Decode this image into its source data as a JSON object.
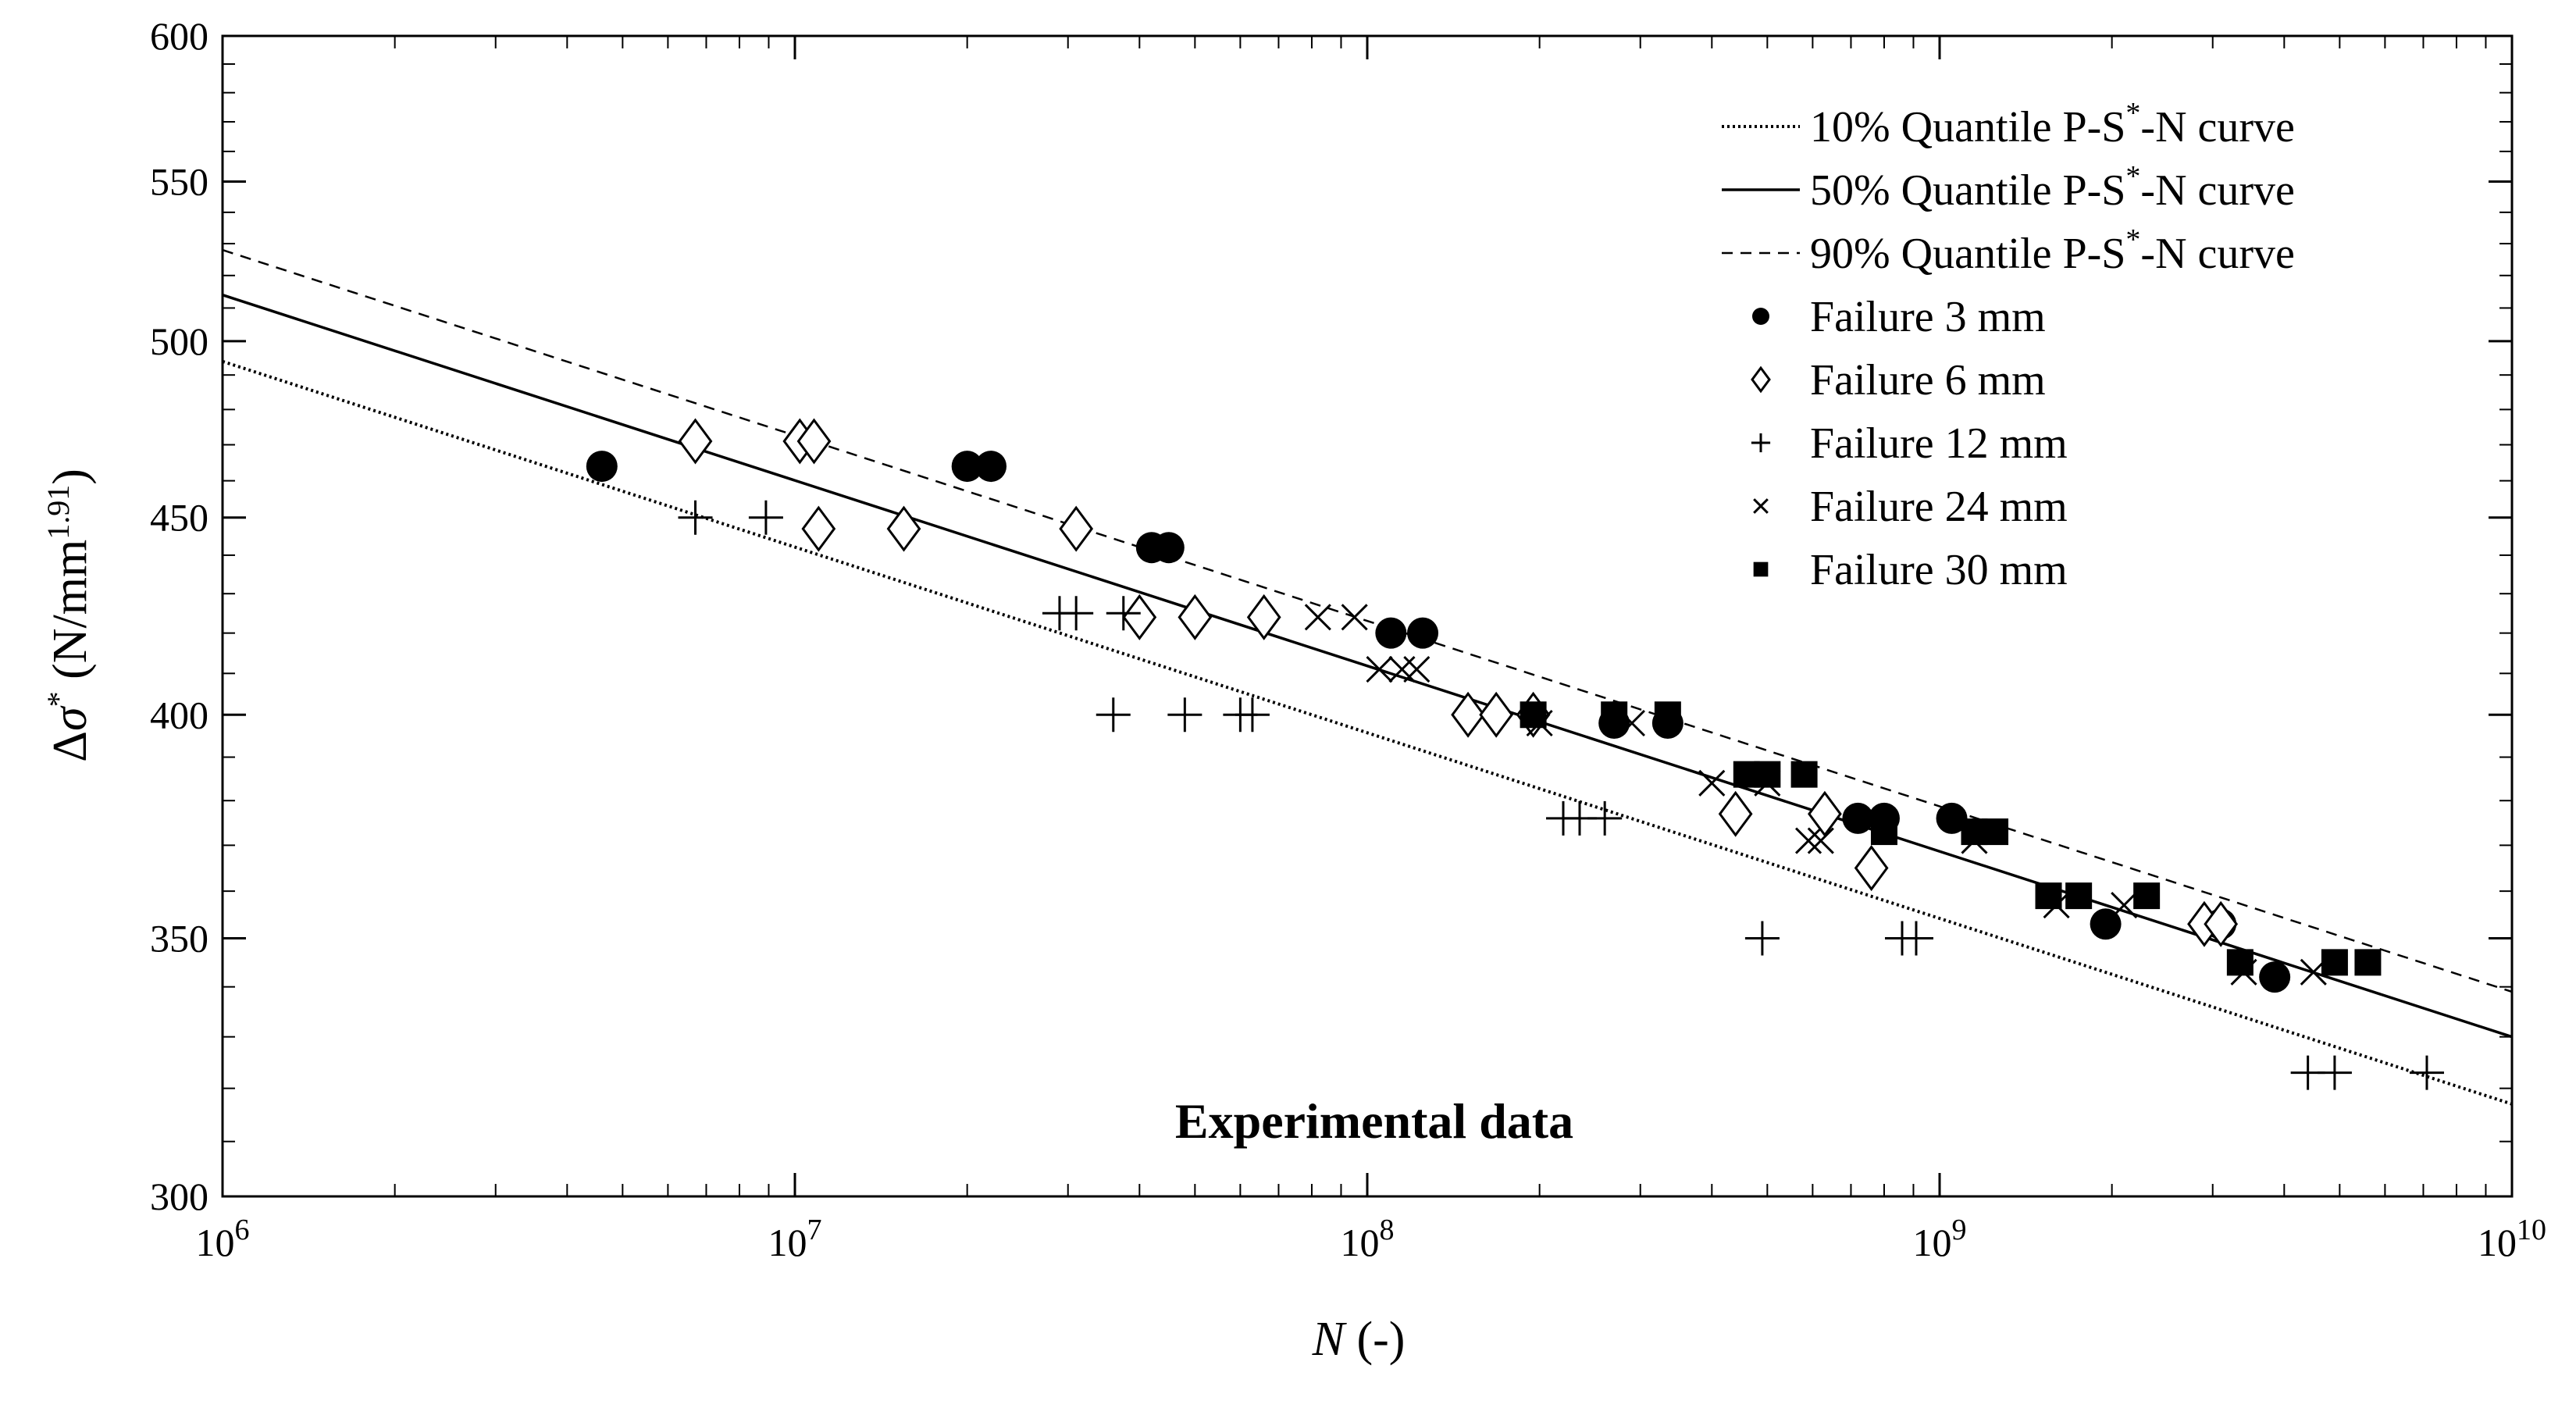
{
  "chart_data": {
    "type": "scatter",
    "x_scale": "log",
    "y_scale": "log",
    "xlim": [
      1000000,
      10000000000
    ],
    "ylim": [
      300,
      600
    ],
    "x_ticks": [
      {
        "value": 1000000,
        "base": "10",
        "exp": "6"
      },
      {
        "value": 10000000,
        "base": "10",
        "exp": "7"
      },
      {
        "value": 100000000,
        "base": "10",
        "exp": "8"
      },
      {
        "value": 1000000000,
        "base": "10",
        "exp": "9"
      },
      {
        "value": 10000000000,
        "base": "10",
        "exp": "10"
      }
    ],
    "y_ticks": [
      {
        "value": 300,
        "label": "300"
      },
      {
        "value": 350,
        "label": "350"
      },
      {
        "value": 400,
        "label": "400"
      },
      {
        "value": 450,
        "label": "450"
      },
      {
        "value": 500,
        "label": "500"
      },
      {
        "value": 550,
        "label": "550"
      },
      {
        "value": 600,
        "label": "600"
      }
    ],
    "xlabel": {
      "symbol": "N",
      "unit": " (-)"
    },
    "ylabel": {
      "delta": "Δ",
      "sigma": "σ",
      "star": "*",
      "unit_open": " (N/mm",
      "exponent": "1.91",
      "unit_close": ")"
    },
    "annotation": "Experimental data",
    "legend_position": "top-right",
    "curves": [
      {
        "name": "10% Quantile P-S*-N curve",
        "style": "dotted",
        "points": [
          [
            1000000,
            494
          ],
          [
            10000000000,
            317
          ]
        ]
      },
      {
        "name": "50% Quantile P-S*-N curve",
        "style": "solid",
        "points": [
          [
            1000000,
            514
          ],
          [
            10000000000,
            330
          ]
        ]
      },
      {
        "name": "90% Quantile P-S*-N curve",
        "style": "dashed",
        "points": [
          [
            1000000,
            528
          ],
          [
            10000000000,
            339
          ]
        ]
      }
    ],
    "series": [
      {
        "name": "Failure 3 mm",
        "marker": "circle",
        "points": [
          [
            4600000,
            464
          ],
          [
            20000000,
            464
          ],
          [
            22000000,
            464
          ],
          [
            42000000,
            442
          ],
          [
            45000000,
            442
          ],
          [
            110000000,
            420
          ],
          [
            125000000,
            420
          ],
          [
            270000000,
            398
          ],
          [
            335000000,
            398
          ],
          [
            720000000,
            376
          ],
          [
            800000000,
            376
          ],
          [
            1050000000,
            376
          ],
          [
            1950000000,
            353
          ],
          [
            3100000000,
            353
          ],
          [
            3850000000,
            342
          ]
        ]
      },
      {
        "name": "Failure 6 mm",
        "marker": "diamond",
        "points": [
          [
            6700000,
            471
          ],
          [
            10200000,
            471
          ],
          [
            10800000,
            471
          ],
          [
            11000000,
            447
          ],
          [
            15500000,
            447
          ],
          [
            31000000,
            447
          ],
          [
            40000000,
            424
          ],
          [
            50000000,
            424
          ],
          [
            66000000,
            424
          ],
          [
            150000000,
            400
          ],
          [
            168000000,
            400
          ],
          [
            195000000,
            400
          ],
          [
            440000000,
            377
          ],
          [
            630000000,
            377
          ],
          [
            760000000,
            365
          ],
          [
            2900000000,
            353
          ],
          [
            3100000000,
            353
          ]
        ]
      },
      {
        "name": "Failure 12 mm",
        "marker": "plus",
        "points": [
          [
            6700000,
            450
          ],
          [
            8900000,
            450
          ],
          [
            29000000,
            425
          ],
          [
            31000000,
            425
          ],
          [
            37500000,
            425
          ],
          [
            36000000,
            400
          ],
          [
            48000000,
            400
          ],
          [
            60000000,
            400
          ],
          [
            63000000,
            400
          ],
          [
            220000000,
            376
          ],
          [
            235000000,
            376
          ],
          [
            260000000,
            376
          ],
          [
            490000000,
            350
          ],
          [
            860000000,
            350
          ],
          [
            910000000,
            350
          ],
          [
            4400000000,
            323
          ],
          [
            4900000000,
            323
          ],
          [
            7100000000,
            323
          ]
        ]
      },
      {
        "name": "Failure 24 mm",
        "marker": "cross",
        "points": [
          [
            82000000,
            424
          ],
          [
            95000000,
            424
          ],
          [
            105000000,
            411
          ],
          [
            115000000,
            411
          ],
          [
            122000000,
            411
          ],
          [
            200000000,
            398
          ],
          [
            290000000,
            398
          ],
          [
            400000000,
            384
          ],
          [
            500000000,
            384
          ],
          [
            590000000,
            371
          ],
          [
            620000000,
            371
          ],
          [
            1150000000,
            371
          ],
          [
            1600000000,
            357
          ],
          [
            2100000000,
            357
          ],
          [
            3400000000,
            343
          ],
          [
            4500000000,
            343
          ]
        ]
      },
      {
        "name": "Failure 30 mm",
        "marker": "square",
        "points": [
          [
            195000000,
            400
          ],
          [
            270000000,
            400
          ],
          [
            335000000,
            400
          ],
          [
            460000000,
            386
          ],
          [
            500000000,
            386
          ],
          [
            580000000,
            386
          ],
          [
            800000000,
            373
          ],
          [
            1150000000,
            373
          ],
          [
            1250000000,
            373
          ],
          [
            1550000000,
            359
          ],
          [
            1750000000,
            359
          ],
          [
            2300000000,
            359
          ],
          [
            3350000000,
            345
          ],
          [
            4900000000,
            345
          ],
          [
            5600000000,
            345
          ]
        ]
      }
    ],
    "legend": [
      {
        "kind": "line",
        "style": "dotted",
        "prefix": "10% Quantile P-S",
        "sup": "*",
        "suffix": "-N curve"
      },
      {
        "kind": "line",
        "style": "solid",
        "prefix": "50% Quantile P-S",
        "sup": "*",
        "suffix": "-N curve"
      },
      {
        "kind": "line",
        "style": "dashed",
        "prefix": "90% Quantile P-S",
        "sup": "*",
        "suffix": "-N curve"
      },
      {
        "kind": "marker",
        "marker": "circle",
        "label": "Failure 3 mm"
      },
      {
        "kind": "marker",
        "marker": "diamond",
        "label": "Failure 6 mm"
      },
      {
        "kind": "marker",
        "marker": "plus",
        "label": "Failure 12 mm"
      },
      {
        "kind": "marker",
        "marker": "cross",
        "label": "Failure 24 mm"
      },
      {
        "kind": "marker",
        "marker": "square",
        "label": "Failure 30 mm"
      }
    ]
  }
}
